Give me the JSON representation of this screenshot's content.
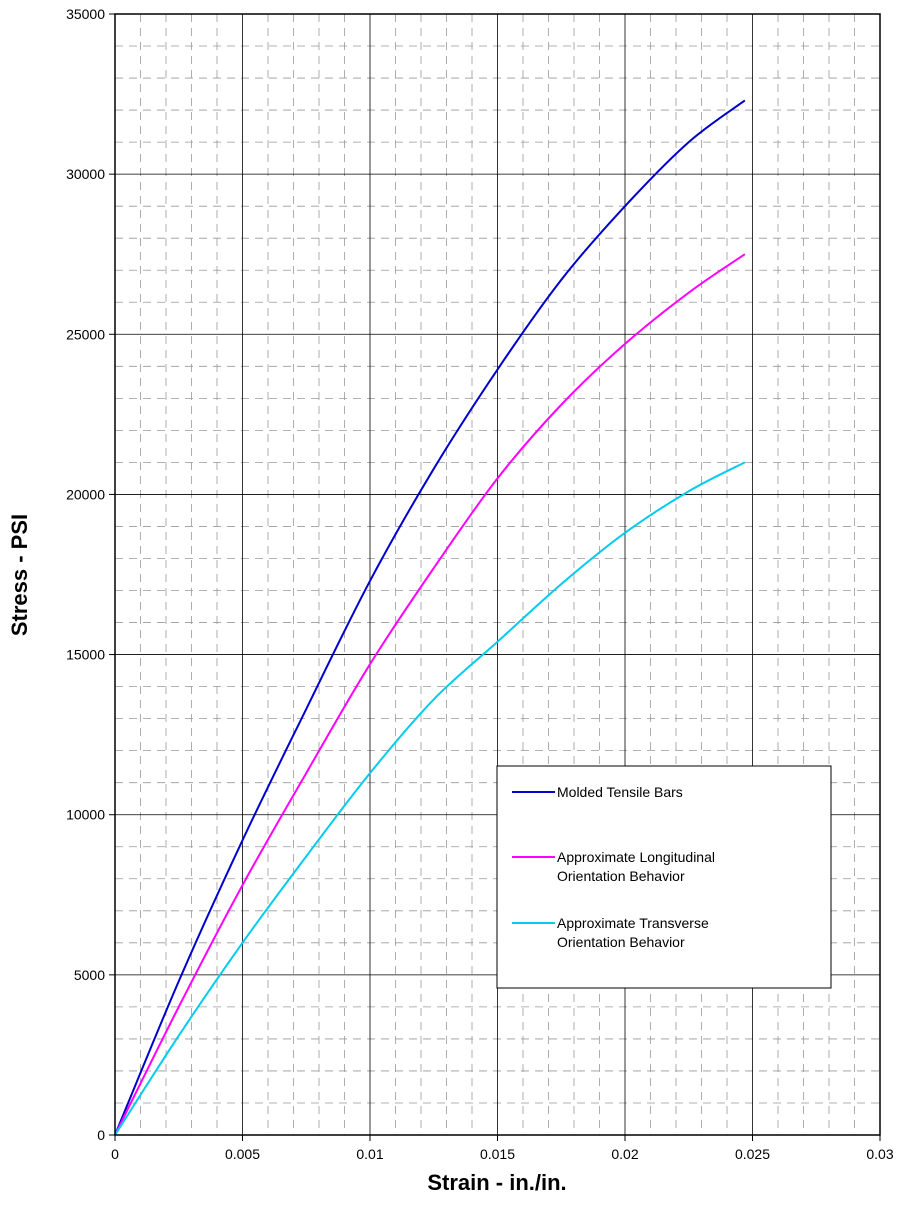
{
  "chart_data": {
    "type": "line",
    "title": "",
    "xlabel": "Strain - in./in.",
    "ylabel": "Stress - PSI",
    "xlim": [
      0,
      0.03
    ],
    "ylim": [
      0,
      35000
    ],
    "x_ticks": [
      0,
      0.005,
      0.01,
      0.015,
      0.02,
      0.025,
      0.03
    ],
    "x_tick_labels": [
      "0",
      "0.005",
      "0.01",
      "0.015",
      "0.02",
      "0.025",
      "0.03"
    ],
    "y_ticks": [
      0,
      5000,
      10000,
      15000,
      20000,
      25000,
      30000,
      35000
    ],
    "y_tick_labels": [
      "0",
      "5000",
      "10000",
      "15000",
      "20000",
      "25000",
      "30000",
      "35000"
    ],
    "grid": {
      "major": true,
      "minor": true,
      "minor_style": "dashed"
    },
    "legend_position": "right-middle",
    "series": [
      {
        "name": "Molded Tensile Bars",
        "color": "#0000CC",
        "x": [
          0,
          0.0025,
          0.005,
          0.0075,
          0.01,
          0.0125,
          0.015,
          0.0175,
          0.02,
          0.0225,
          0.0247
        ],
        "y": [
          0,
          4800,
          9200,
          13300,
          17300,
          20800,
          23900,
          26700,
          29000,
          31000,
          32300
        ]
      },
      {
        "name": "Approximate Longitudinal Orientation Behavior",
        "color": "#FF00FF",
        "x": [
          0,
          0.0025,
          0.005,
          0.0075,
          0.01,
          0.0125,
          0.015,
          0.0175,
          0.02,
          0.0225,
          0.0247
        ],
        "y": [
          0,
          4000,
          7800,
          11300,
          14700,
          17700,
          20500,
          22800,
          24700,
          26300,
          27500
        ]
      },
      {
        "name": "Approximate Transverse Orientation Behavior",
        "color": "#00CCEE",
        "x": [
          0,
          0.0025,
          0.005,
          0.0075,
          0.01,
          0.0125,
          0.015,
          0.0175,
          0.02,
          0.0225,
          0.0247
        ],
        "y": [
          0,
          3100,
          6000,
          8700,
          11300,
          13600,
          15400,
          17200,
          18800,
          20100,
          21000
        ]
      }
    ],
    "legend_lines": [
      [
        "Molded Tensile Bars"
      ],
      [
        "Approximate Longitudinal",
        "Orientation Behavior"
      ],
      [
        "Approximate Transverse",
        "Orientation Behavior"
      ]
    ]
  }
}
